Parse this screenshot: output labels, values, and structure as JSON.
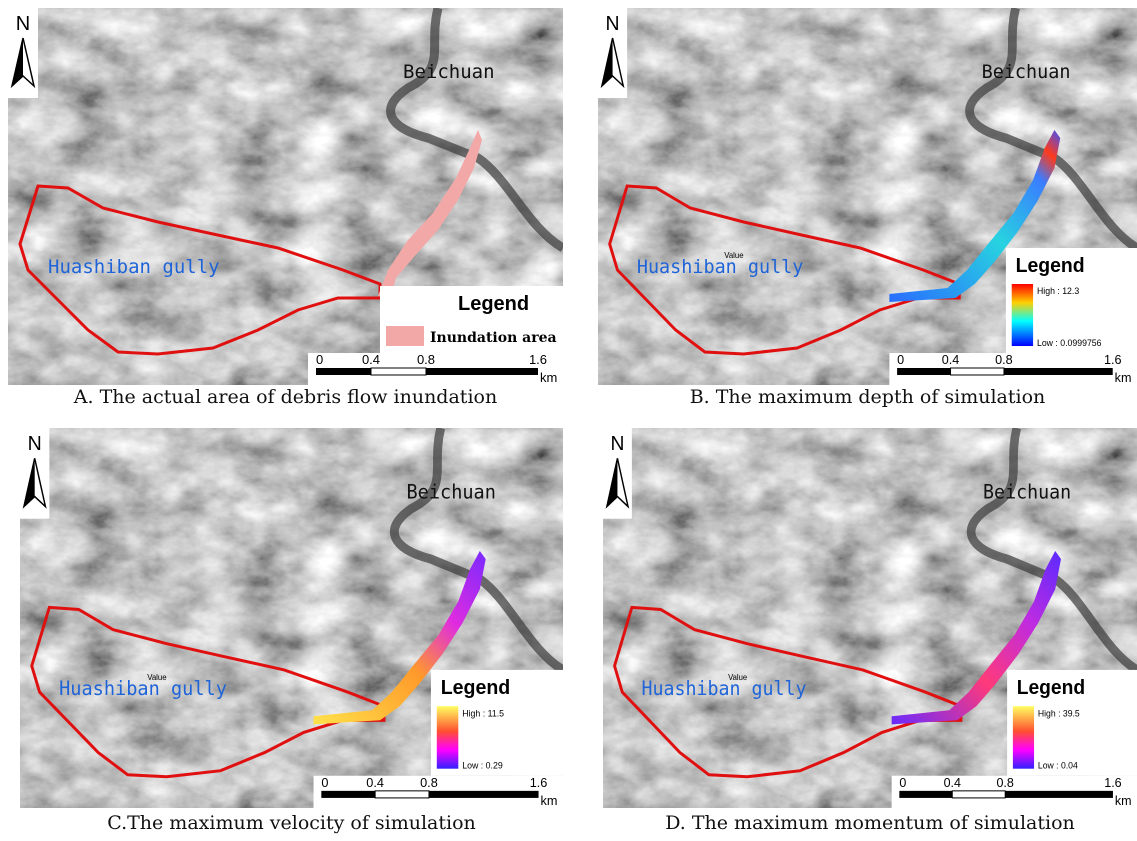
{
  "panels": [
    {
      "caption": "A. The actual area of debris flow inundation",
      "north": "N",
      "town": "Beichuan",
      "gully": "Huashiban gully",
      "legend": {
        "title": "Legend",
        "item": "Inundation area"
      },
      "scale": {
        "ticks": [
          "0",
          "0.4",
          "0.8",
          "1.6"
        ],
        "unit": "km"
      }
    },
    {
      "caption": "B. The maximum depth of simulation",
      "north": "N",
      "town": "Beichuan",
      "gully": "Huashiban gully",
      "field": "Value",
      "legend": {
        "title": "Legend",
        "high": "High : 12.3",
        "low": "Low : 0.0999756"
      },
      "scale": {
        "ticks": [
          "0",
          "0.4",
          "0.8",
          "1.6"
        ],
        "unit": "km"
      }
    },
    {
      "caption": "C.The maximum velocity of simulation",
      "north": "N",
      "town": "Beichuan",
      "gully": "Huashiban gully",
      "field": "Value",
      "legend": {
        "title": "Legend",
        "high": "High : 11.5",
        "low": "Low : 0.29"
      },
      "scale": {
        "ticks": [
          "0",
          "0.4",
          "0.8",
          "1.6"
        ],
        "unit": "km"
      }
    },
    {
      "caption": "D. The maximum momentum of simulation",
      "north": "N",
      "town": "Beichuan",
      "gully": "Huashiban gully",
      "field": "Value",
      "legend": {
        "title": "Legend",
        "high": "High : 39.5",
        "low": "Low : 0.04"
      },
      "scale": {
        "ticks": [
          "0",
          "0.4",
          "0.8",
          "1.6"
        ],
        "unit": "km"
      }
    }
  ]
}
